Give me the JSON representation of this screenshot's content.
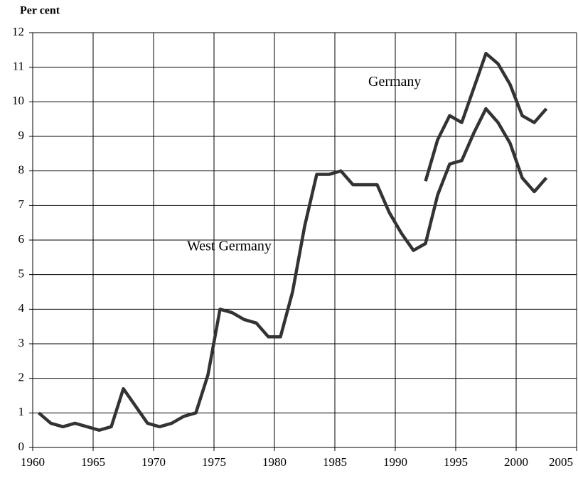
{
  "chart_data": {
    "type": "line",
    "y_label": "Per cent",
    "xlim": [
      1960,
      2005
    ],
    "xticks": [
      1960,
      1965,
      1970,
      1975,
      1980,
      1985,
      1990,
      1995,
      2000,
      2005
    ],
    "ylim": [
      0,
      12
    ],
    "yticks": [
      0,
      1,
      2,
      3,
      4,
      5,
      6,
      7,
      8,
      9,
      10,
      11,
      12
    ],
    "grid": true,
    "series": [
      {
        "name": "West Germany",
        "color": "#333333",
        "x": [
          1960.5,
          1961.5,
          1962.5,
          1963.5,
          1964.5,
          1965.5,
          1966.5,
          1967.5,
          1968.5,
          1969.5,
          1970.5,
          1971.5,
          1972.5,
          1973.5,
          1974.5,
          1975.5,
          1976.5,
          1977.5,
          1978.5,
          1979.5,
          1980.5,
          1981.5,
          1982.5,
          1983.5,
          1984.5,
          1985.5,
          1986.5,
          1987.5,
          1988.5,
          1989.5,
          1990.5,
          1991.5,
          1992.5,
          1993.5,
          1994.5,
          1995.5,
          1996.5,
          1997.5,
          1998.5,
          1999.5,
          2000.5,
          2001.5,
          2002.5
        ],
        "values": [
          1.0,
          0.7,
          0.6,
          0.7,
          0.6,
          0.5,
          0.6,
          1.7,
          1.2,
          0.7,
          0.6,
          0.7,
          0.9,
          1.0,
          2.1,
          4.0,
          3.9,
          3.7,
          3.6,
          3.2,
          3.2,
          4.5,
          6.4,
          7.9,
          7.9,
          8.0,
          7.6,
          7.6,
          7.6,
          6.8,
          6.2,
          5.7,
          5.9,
          7.3,
          8.2,
          8.3,
          9.1,
          9.8,
          9.4,
          8.8,
          7.8,
          7.4,
          7.8
        ]
      },
      {
        "name": "Germany",
        "color": "#333333",
        "x": [
          1992.5,
          1993.5,
          1994.5,
          1995.5,
          1996.5,
          1997.5,
          1998.5,
          1999.5,
          2000.5,
          2001.5,
          2002.5
        ],
        "values": [
          7.7,
          8.9,
          9.6,
          9.4,
          10.4,
          11.4,
          11.1,
          10.5,
          9.6,
          9.4,
          9.8
        ]
      }
    ]
  }
}
